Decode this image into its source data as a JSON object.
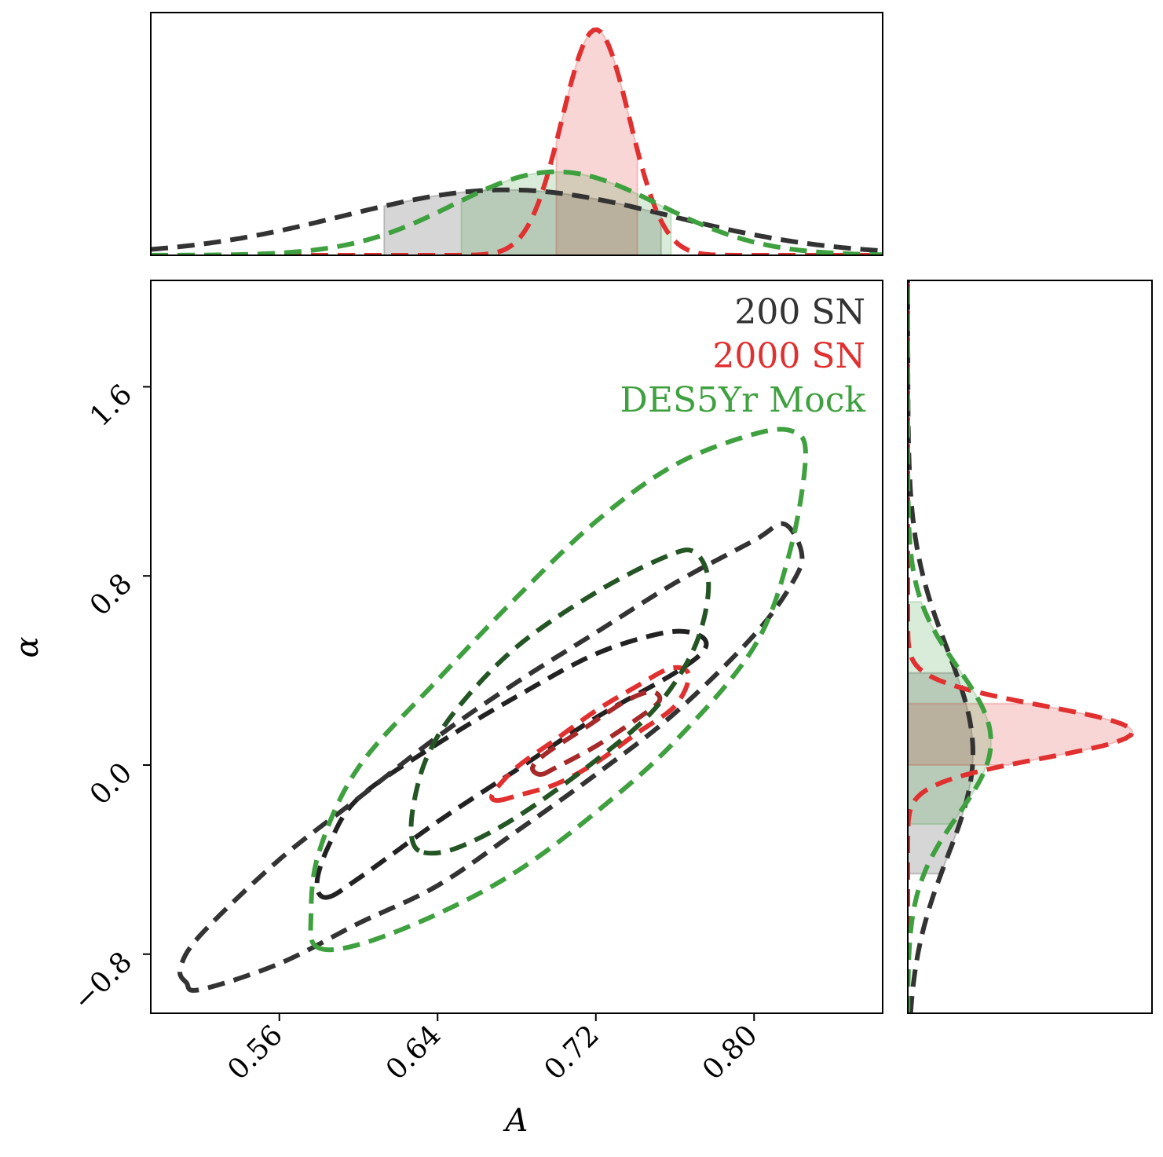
{
  "chart_data": {
    "type": "scatter",
    "subtype": "corner-plot",
    "x_param": {
      "label": "A",
      "range": [
        0.495,
        0.865
      ],
      "ticks": [
        0.56,
        0.64,
        0.72,
        0.8
      ],
      "tick_labels": [
        "0.56",
        "0.64",
        "0.72",
        "0.80"
      ]
    },
    "y_param": {
      "label": "α",
      "range": [
        -1.05,
        2.05
      ],
      "ticks": [
        -0.8,
        0.0,
        0.8,
        1.6
      ],
      "tick_labels": [
        "−0.8",
        "0.0",
        "0.8",
        "1.6"
      ]
    },
    "legend": {
      "placement": "top-right"
    },
    "series": [
      {
        "name": "200 SN",
        "color": "#333333",
        "dark_color": "#222222",
        "marg_A": {
          "mean": 0.675,
          "sigma": 0.082,
          "band": [
            0.613,
            0.753
          ],
          "peak": 0.29
        },
        "marg_alpha": {
          "mean": 0.05,
          "sigma": 0.44,
          "band": [
            -0.46,
            0.39
          ],
          "peak": 0.29
        },
        "contours": [
          {
            "level": "1sigma",
            "points": [
              [
                0.584,
                -0.56
              ],
              [
                0.6,
                -0.48
              ],
              [
                0.64,
                -0.24
              ],
              [
                0.68,
                -0.02
              ],
              [
                0.72,
                0.2
              ],
              [
                0.76,
                0.39
              ],
              [
                0.775,
                0.49
              ],
              [
                0.772,
                0.55
              ],
              [
                0.755,
                0.56
              ],
              [
                0.72,
                0.47
              ],
              [
                0.68,
                0.29
              ],
              [
                0.64,
                0.09
              ],
              [
                0.6,
                -0.14
              ],
              [
                0.585,
                -0.34
              ],
              [
                0.579,
                -0.5
              ]
            ]
          },
          {
            "level": "2sigma",
            "points": [
              [
                0.513,
                -0.92
              ],
              [
                0.52,
                -0.95
              ],
              [
                0.56,
                -0.84
              ],
              [
                0.6,
                -0.67
              ],
              [
                0.64,
                -0.51
              ],
              [
                0.68,
                -0.28
              ],
              [
                0.72,
                -0.04
              ],
              [
                0.76,
                0.22
              ],
              [
                0.8,
                0.55
              ],
              [
                0.82,
                0.78
              ],
              [
                0.824,
                0.9
              ],
              [
                0.815,
                1.02
              ],
              [
                0.8,
                0.95
              ],
              [
                0.76,
                0.77
              ],
              [
                0.72,
                0.56
              ],
              [
                0.68,
                0.35
              ],
              [
                0.64,
                0.12
              ],
              [
                0.6,
                -0.14
              ],
              [
                0.56,
                -0.4
              ],
              [
                0.52,
                -0.72
              ],
              [
                0.51,
                -0.86
              ]
            ]
          }
        ]
      },
      {
        "name": "2000 SN",
        "color": "#e03030",
        "dark_color": "#a62a2a",
        "marg_A": {
          "mean": 0.72,
          "sigma": 0.017,
          "band": [
            0.7,
            0.741
          ],
          "peak": 1.0
        },
        "marg_alpha": {
          "mean": 0.14,
          "sigma": 0.11,
          "band": [
            0.0,
            0.26
          ],
          "peak": 1.0
        },
        "contours": [
          {
            "level": "1sigma",
            "points": [
              [
                0.692,
                -0.04
              ],
              [
                0.7,
                -0.01
              ],
              [
                0.72,
                0.08
              ],
              [
                0.74,
                0.19
              ],
              [
                0.752,
                0.27
              ],
              [
                0.748,
                0.31
              ],
              [
                0.735,
                0.27
              ],
              [
                0.715,
                0.16
              ],
              [
                0.695,
                0.05
              ],
              [
                0.688,
                -0.01
              ]
            ]
          },
          {
            "level": "2sigma",
            "points": [
              [
                0.67,
                -0.15
              ],
              [
                0.68,
                -0.13
              ],
              [
                0.7,
                -0.08
              ],
              [
                0.72,
                0.01
              ],
              [
                0.74,
                0.13
              ],
              [
                0.76,
                0.25
              ],
              [
                0.767,
                0.38
              ],
              [
                0.758,
                0.41
              ],
              [
                0.74,
                0.33
              ],
              [
                0.72,
                0.23
              ],
              [
                0.7,
                0.11
              ],
              [
                0.68,
                -0.01
              ],
              [
                0.668,
                -0.12
              ]
            ]
          }
        ]
      },
      {
        "name": "DES5Yr Mock",
        "color": "#3fa03f",
        "dark_color": "#245524",
        "marg_A": {
          "mean": 0.7,
          "sigma": 0.052,
          "band": [
            0.652,
            0.758
          ],
          "peak": 0.37
        },
        "marg_alpha": {
          "mean": 0.1,
          "sigma": 0.31,
          "band": [
            -0.25,
            0.69
          ],
          "peak": 0.37
        },
        "contours": [
          {
            "level": "1sigma",
            "points": [
              [
                0.633,
                -0.37
              ],
              [
                0.65,
                -0.35
              ],
              [
                0.68,
                -0.22
              ],
              [
                0.72,
                0.02
              ],
              [
                0.75,
                0.24
              ],
              [
                0.77,
                0.5
              ],
              [
                0.777,
                0.76
              ],
              [
                0.77,
                0.9
              ],
              [
                0.755,
                0.88
              ],
              [
                0.72,
                0.73
              ],
              [
                0.68,
                0.5
              ],
              [
                0.65,
                0.24
              ],
              [
                0.635,
                0.04
              ],
              [
                0.628,
                -0.16
              ],
              [
                0.627,
                -0.31
              ]
            ]
          },
          {
            "level": "2sigma",
            "points": [
              [
                0.579,
                -0.77
              ],
              [
                0.6,
                -0.76
              ],
              [
                0.64,
                -0.63
              ],
              [
                0.68,
                -0.45
              ],
              [
                0.72,
                -0.2
              ],
              [
                0.76,
                0.1
              ],
              [
                0.8,
                0.5
              ],
              [
                0.818,
                0.9
              ],
              [
                0.826,
                1.3
              ],
              [
                0.82,
                1.41
              ],
              [
                0.8,
                1.4
              ],
              [
                0.76,
                1.27
              ],
              [
                0.72,
                1.03
              ],
              [
                0.68,
                0.71
              ],
              [
                0.64,
                0.36
              ],
              [
                0.6,
                -0.01
              ],
              [
                0.58,
                -0.37
              ],
              [
                0.576,
                -0.64
              ]
            ]
          }
        ]
      }
    ]
  }
}
